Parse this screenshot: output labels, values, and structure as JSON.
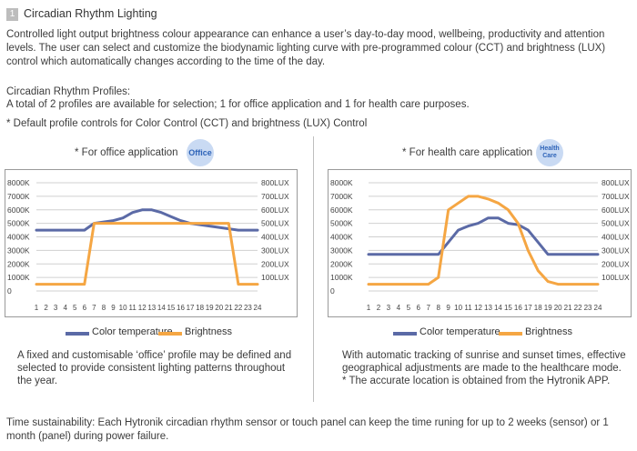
{
  "header": {
    "index": "1",
    "title": "Circadian Rhythm Lighting"
  },
  "intro": {
    "line1": "Controlled light output brightness colour appearance can enhance a user’s day-to-day mood, wellbeing, productivity and attention",
    "line2": "levels.  The user can select and customize the biodynamic lighting curve with pre-programmed colour (CCT) and brightness (LUX)",
    "line3": "control which automatically changes according to the time of the day."
  },
  "profiles": {
    "heading": "Circadian Rhythm Profiles:",
    "line1": "A total of 2 profiles are available for selection;  1 for office application and 1 for health care purposes.",
    "line2": "* Default profile controls for Color Control (CCT) and brightness (LUX)  Control"
  },
  "office": {
    "caption": "* For office application",
    "badge": "Office",
    "desc1": "A fixed and customisable ‘office’ profile may be defined and",
    "desc2": "selected to provide consistent lighting patterns throughout",
    "desc3": "the year."
  },
  "health": {
    "caption": "* For health care application",
    "badge1": "Health",
    "badge2": "Care",
    "desc1": "With automatic tracking of sunrise and sunset times, effective",
    "desc2": "geographical adjustments are made to the healthcare mode.",
    "desc3": "* The accurate location is obtained from the Hytronik APP."
  },
  "legend": {
    "color_temperature": "Color temperature",
    "brightness": "Brightness"
  },
  "footer": {
    "line1": "Time sustainability: Each Hytronik circadian rhythm sensor or touch panel can keep the time runing for up to 2 weeks (sensor) or 1",
    "line2": "month (panel) during power failure."
  },
  "colors": {
    "cct": "#5b6aa6",
    "lux": "#f5a643",
    "grid": "#d0d0d0",
    "badge": "#c9daf3"
  },
  "chart_data": [
    {
      "type": "line",
      "title": "",
      "x": [
        1,
        2,
        3,
        4,
        5,
        6,
        7,
        8,
        9,
        10,
        11,
        12,
        13,
        14,
        15,
        16,
        17,
        18,
        19,
        20,
        21,
        22,
        23,
        24
      ],
      "x_tick_labels": [
        "1",
        "2",
        "3",
        "4",
        "5",
        "6",
        "7",
        "8",
        "9",
        "10",
        "11",
        "12",
        "13",
        "14",
        "15",
        "16",
        "17",
        "18",
        "19",
        "20",
        "21",
        "22",
        "23",
        "24"
      ],
      "y_left_ticks": [
        "8000K",
        "7000K",
        "6000K",
        "5000K",
        "4000K",
        "3000K",
        "2000K",
        "1000K",
        "0"
      ],
      "y_right_ticks": [
        "800LUX",
        "700LUX",
        "600LUX",
        "500LUX",
        "400LUX",
        "300LUX",
        "200LUX",
        "100LUX"
      ],
      "ylim_left": [
        0,
        8000
      ],
      "ylim_right": [
        0,
        800
      ],
      "grid": true,
      "legend": "bottom",
      "series": [
        {
          "name": "Color temperature",
          "axis": "left",
          "color": "#5b6aa6",
          "values": [
            4500,
            4500,
            4500,
            4500,
            4500,
            4500,
            5000,
            5100,
            5200,
            5400,
            5800,
            6000,
            6000,
            5800,
            5500,
            5200,
            5000,
            4900,
            4800,
            4700,
            4600,
            4500,
            4500,
            4500
          ]
        },
        {
          "name": "Brightness",
          "axis": "right",
          "color": "#f5a643",
          "values": [
            50,
            50,
            50,
            50,
            50,
            50,
            500,
            500,
            500,
            500,
            500,
            500,
            500,
            500,
            500,
            500,
            500,
            500,
            500,
            500,
            500,
            50,
            50,
            50
          ]
        }
      ]
    },
    {
      "type": "line",
      "title": "",
      "x": [
        1,
        2,
        3,
        4,
        5,
        6,
        7,
        8,
        9,
        10,
        11,
        12,
        13,
        14,
        15,
        16,
        17,
        18,
        19,
        20,
        21,
        22,
        23,
        24
      ],
      "x_tick_labels": [
        "1",
        "2",
        "3",
        "4",
        "5",
        "6",
        "7",
        "8",
        "9",
        "10",
        "11",
        "12",
        "13",
        "14",
        "15",
        "16",
        "17",
        "18",
        "19",
        "20",
        "21",
        "22",
        "23",
        "24"
      ],
      "y_left_ticks": [
        "8000K",
        "7000K",
        "6000K",
        "5000K",
        "4000K",
        "3000K",
        "2000K",
        "1000K",
        "0"
      ],
      "y_right_ticks": [
        "800LUX",
        "700LUX",
        "600LUX",
        "500LUX",
        "400LUX",
        "300LUX",
        "200LUX",
        "100LUX"
      ],
      "ylim_left": [
        0,
        8000
      ],
      "ylim_right": [
        0,
        800
      ],
      "grid": true,
      "legend": "bottom",
      "series": [
        {
          "name": "Color temperature",
          "axis": "left",
          "color": "#5b6aa6",
          "values": [
            2700,
            2700,
            2700,
            2700,
            2700,
            2700,
            2700,
            2700,
            3600,
            4500,
            4800,
            5000,
            5400,
            5400,
            5000,
            4900,
            4500,
            3600,
            2700,
            2700,
            2700,
            2700,
            2700,
            2700
          ]
        },
        {
          "name": "Brightness",
          "axis": "right",
          "color": "#f5a643",
          "values": [
            50,
            50,
            50,
            50,
            50,
            50,
            50,
            100,
            600,
            650,
            700,
            700,
            680,
            650,
            600,
            500,
            300,
            150,
            70,
            50,
            50,
            50,
            50,
            50
          ]
        }
      ]
    }
  ]
}
